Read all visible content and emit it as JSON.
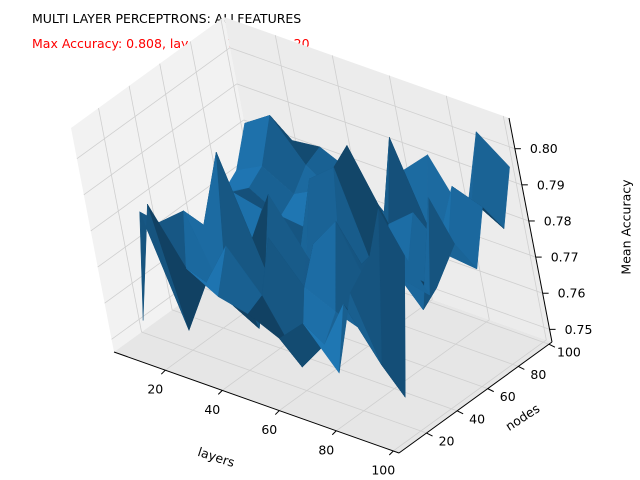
{
  "chart_data": {
    "type": "surface3d",
    "title": "MULTI LAYER PERCEPTRONS: ALLFEATURES",
    "subtitle": "Max Accuracy: 0.808, layers: 100, nodes: 20",
    "subtitle_color": "#ff0000",
    "surface_color": "#1f77b4",
    "xlabel": "layers",
    "ylabel": "nodes",
    "zlabel": "Mean Accuracy",
    "x_ticks": [
      "20",
      "40",
      "60",
      "80",
      "100"
    ],
    "y_ticks": [
      "20",
      "40",
      "60",
      "80",
      "100"
    ],
    "z_ticks": [
      "0.75",
      "0.76",
      "0.77",
      "0.78",
      "0.79",
      "0.80"
    ],
    "x": [
      10,
      20,
      30,
      40,
      50,
      60,
      70,
      80,
      90,
      100
    ],
    "y": [
      10,
      20,
      30,
      40,
      50,
      60,
      70,
      80,
      90,
      100
    ],
    "zlim": [
      0.748,
      0.808
    ],
    "grid": true,
    "max": {
      "value": 0.808,
      "layers": 100,
      "nodes": 20
    },
    "z": [
      [
        0.755,
        0.782,
        0.776,
        0.77,
        0.765,
        0.768,
        0.772,
        0.775,
        0.785,
        0.772
      ],
      [
        0.79,
        0.752,
        0.782,
        0.775,
        0.768,
        0.778,
        0.776,
        0.779,
        0.79,
        0.78
      ],
      [
        0.775,
        0.768,
        0.76,
        0.798,
        0.77,
        0.776,
        0.771,
        0.774,
        0.779,
        0.781
      ],
      [
        0.77,
        0.781,
        0.755,
        0.768,
        0.786,
        0.764,
        0.77,
        0.778,
        0.773,
        0.777
      ],
      [
        0.768,
        0.77,
        0.783,
        0.76,
        0.772,
        0.79,
        0.766,
        0.771,
        0.774,
        0.768
      ],
      [
        0.764,
        0.753,
        0.772,
        0.781,
        0.76,
        0.796,
        0.799,
        0.77,
        0.765,
        0.783
      ],
      [
        0.771,
        0.762,
        0.768,
        0.79,
        0.775,
        0.762,
        0.78,
        0.801,
        0.768,
        0.79
      ],
      [
        0.76,
        0.776,
        0.765,
        0.769,
        0.784,
        0.772,
        0.786,
        0.773,
        0.777,
        0.775
      ],
      [
        0.785,
        0.762,
        0.75,
        0.78,
        0.768,
        0.771,
        0.777,
        0.793,
        0.786,
        0.802
      ],
      [
        0.798,
        0.808,
        0.792,
        0.778,
        0.802,
        0.786,
        0.776,
        0.79,
        0.781,
        0.795
      ]
    ]
  }
}
